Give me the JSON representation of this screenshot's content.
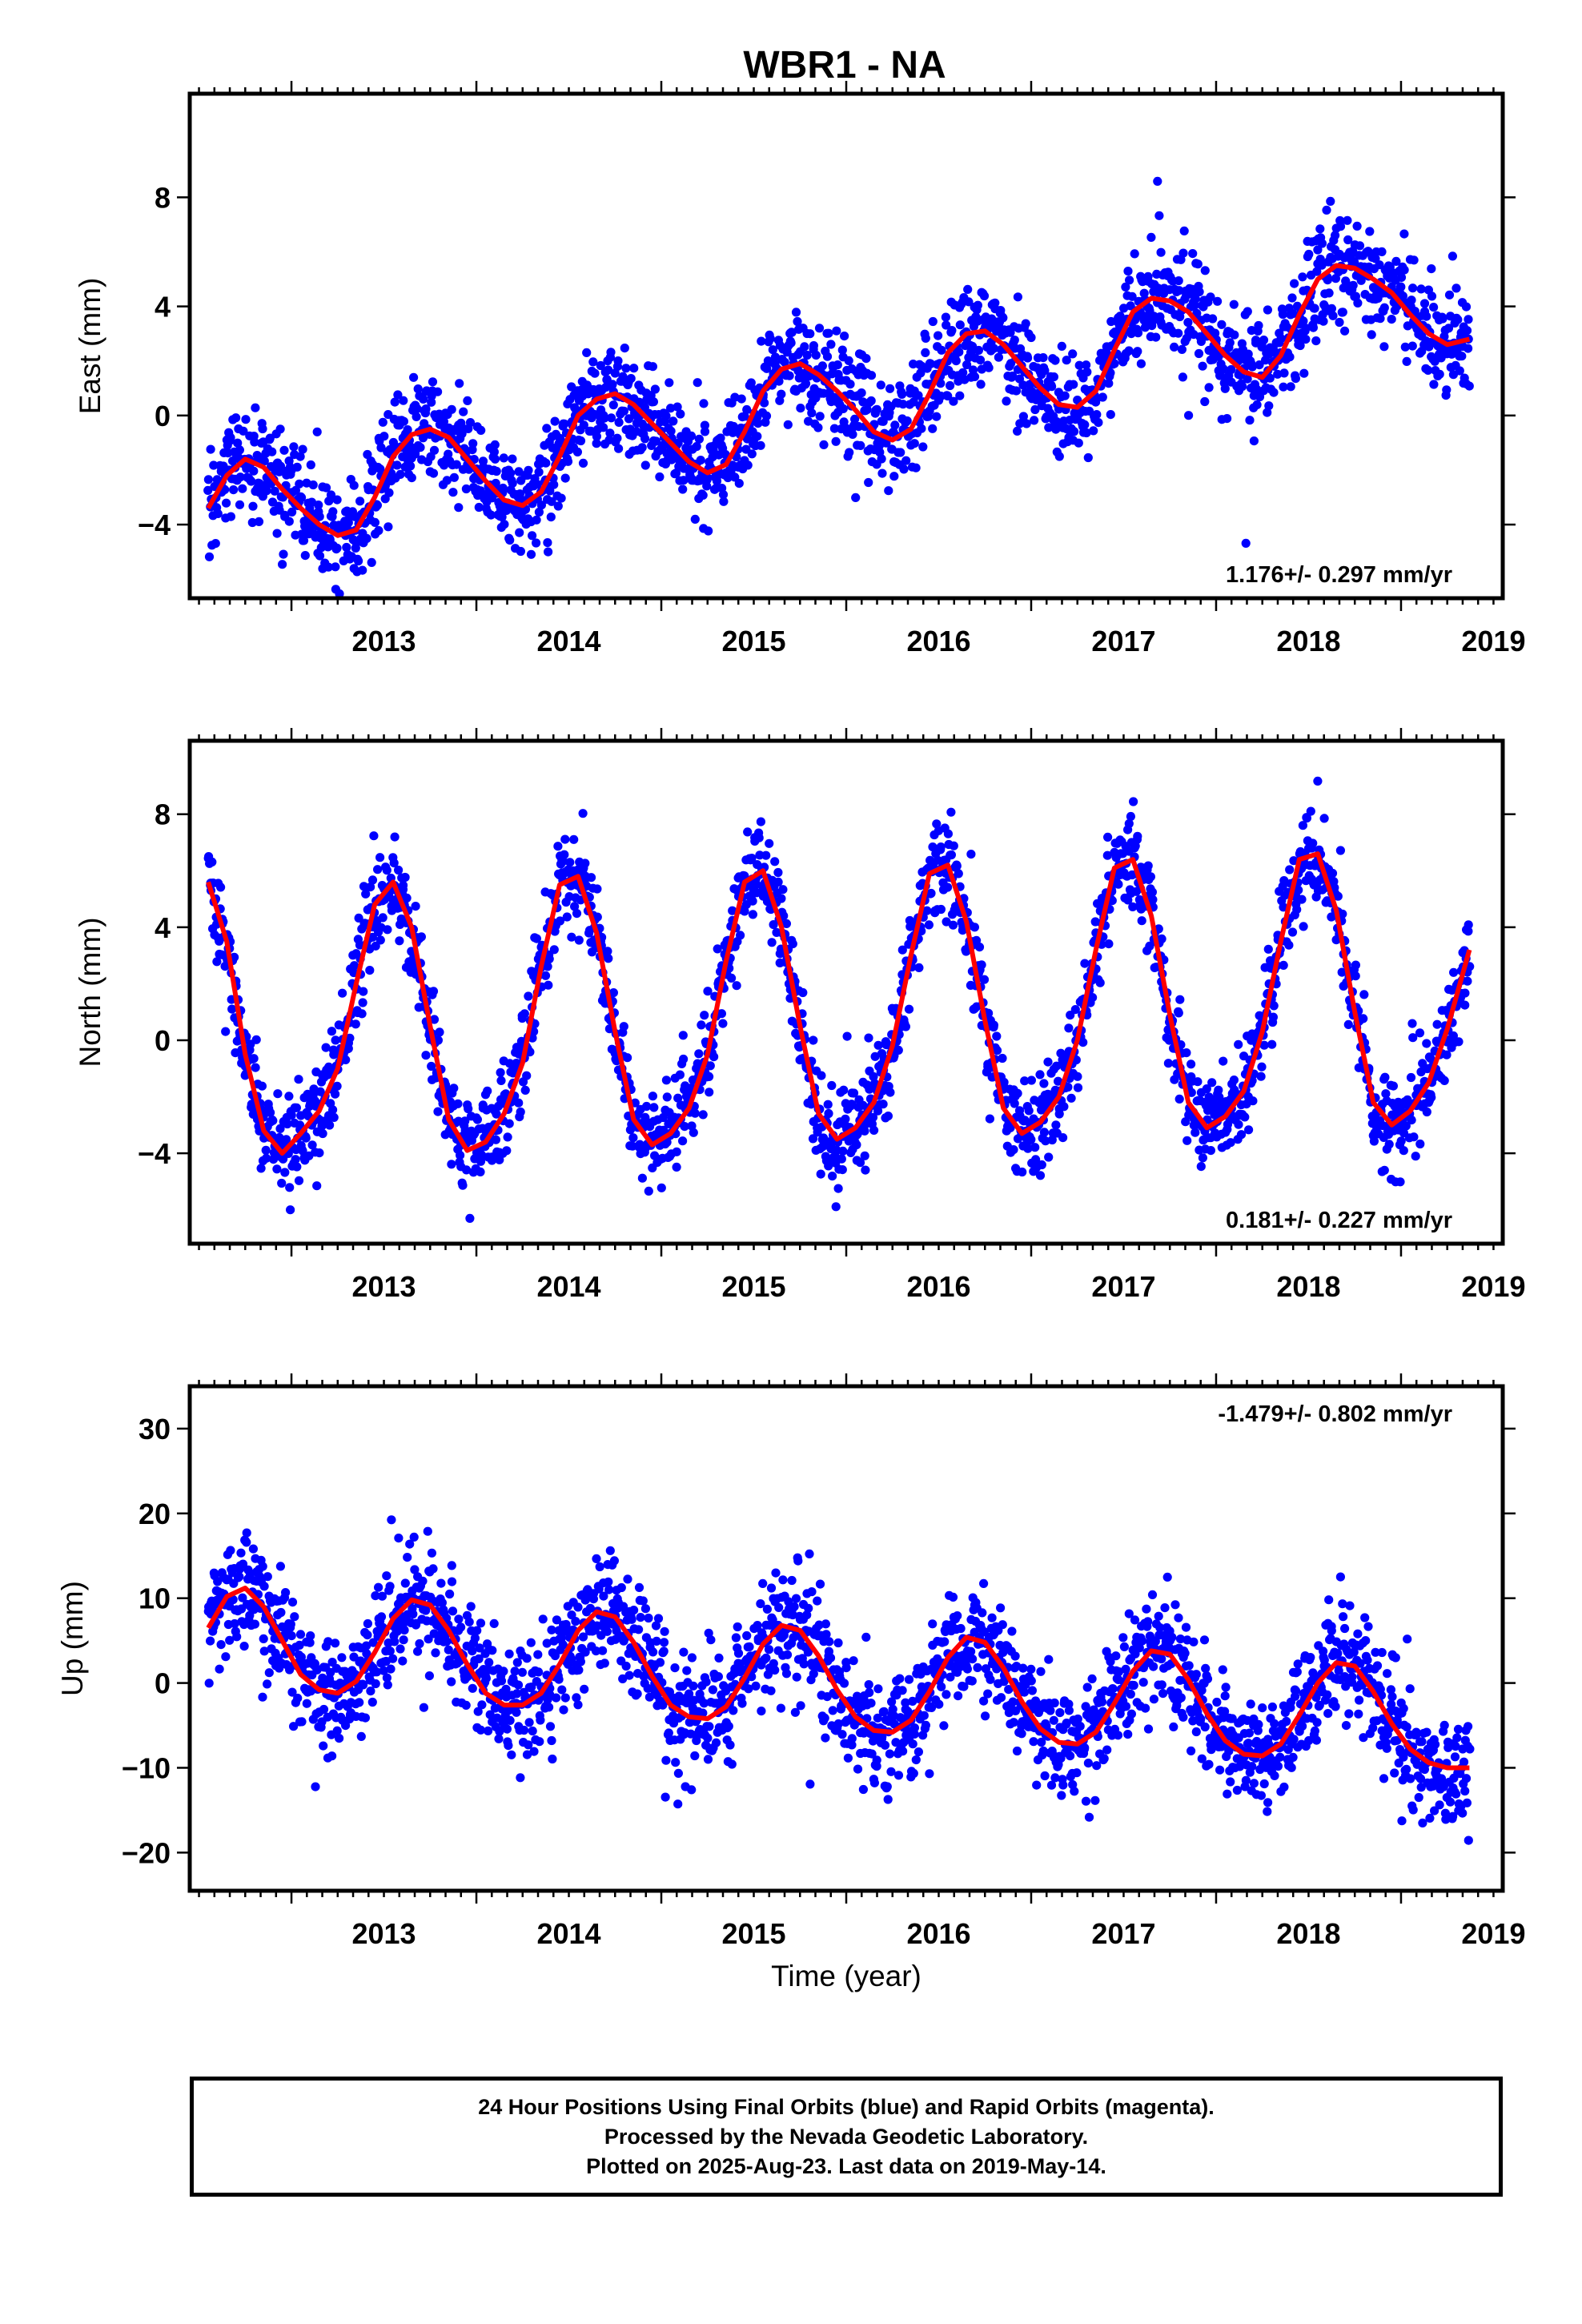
{
  "figure": {
    "title": "WBR1 - NA",
    "xlabel": "Time (year)"
  },
  "colors": {
    "points": "#0000ff",
    "fit": "#ff0000",
    "axes": "#000000"
  },
  "footer": {
    "line1": "24 Hour Positions Using Final Orbits (blue) and Rapid Orbits (magenta).",
    "line2": "Processed by the Nevada Geodetic Laboratory.",
    "line3": "Plotted on 2025-Aug-23. Last data on 2019-May-14."
  },
  "chart_data": [
    {
      "type": "scatter",
      "name": "east-panel",
      "ylabel": "East (mm)",
      "rate_label": "1.176+/- 0.297 mm/yr",
      "rate_position": "bottom-right",
      "xlim": [
        2012.45,
        2019.55
      ],
      "ylim": [
        -6.7,
        11.8
      ],
      "yticks": [
        -4,
        0,
        4,
        8
      ],
      "ytick_labels": [
        "−4",
        "0",
        "4",
        "8"
      ],
      "xticks": [
        2013,
        2014,
        2015,
        2016,
        2017,
        2018,
        2019
      ],
      "xtick_labels": [
        "2013",
        "2014",
        "2015",
        "2016",
        "2017",
        "2018",
        "2019"
      ],
      "data_range": [
        2012.55,
        2019.37
      ],
      "series": [
        {
          "name": "fit",
          "kind": "line",
          "x": [
            2012.55,
            2012.65,
            2012.75,
            2012.85,
            2012.95,
            2013.05,
            2013.15,
            2013.25,
            2013.35,
            2013.45,
            2013.55,
            2013.65,
            2013.75,
            2013.85,
            2013.95,
            2014.05,
            2014.15,
            2014.25,
            2014.35,
            2014.45,
            2014.55,
            2014.65,
            2014.75,
            2014.85,
            2014.95,
            2015.05,
            2015.15,
            2015.25,
            2015.35,
            2015.45,
            2015.55,
            2015.65,
            2015.75,
            2015.85,
            2015.95,
            2016.05,
            2016.15,
            2016.25,
            2016.35,
            2016.45,
            2016.55,
            2016.65,
            2016.75,
            2016.85,
            2016.95,
            2017.05,
            2017.15,
            2017.25,
            2017.35,
            2017.45,
            2017.55,
            2017.65,
            2017.75,
            2017.85,
            2017.95,
            2018.05,
            2018.15,
            2018.25,
            2018.35,
            2018.45,
            2018.55,
            2018.65,
            2018.75,
            2018.85,
            2018.95,
            2019.05,
            2019.15,
            2019.25,
            2019.37
          ],
          "y": [
            -3.4,
            -2.2,
            -1.6,
            -1.9,
            -2.7,
            -3.4,
            -4.0,
            -4.4,
            -4.2,
            -3.0,
            -1.5,
            -0.7,
            -0.5,
            -0.8,
            -1.6,
            -2.4,
            -3.1,
            -3.3,
            -2.8,
            -1.5,
            0.0,
            0.6,
            0.8,
            0.4,
            -0.3,
            -1.0,
            -1.7,
            -2.1,
            -1.8,
            -0.6,
            0.9,
            1.7,
            1.9,
            1.5,
            0.9,
            0.2,
            -0.6,
            -0.9,
            -0.5,
            0.8,
            2.3,
            3.0,
            3.1,
            2.6,
            1.8,
            1.0,
            0.4,
            0.3,
            0.9,
            2.4,
            3.8,
            4.3,
            4.2,
            3.8,
            3.0,
            2.2,
            1.6,
            1.4,
            2.2,
            3.7,
            5.0,
            5.5,
            5.4,
            5.0,
            4.5,
            3.7,
            3.0,
            2.6,
            2.8
          ]
        },
        {
          "name": "positions",
          "kind": "scatter",
          "points_model": "fit + station scatter",
          "std_mm": 0.95,
          "count": 2100
        }
      ]
    },
    {
      "type": "scatter",
      "name": "north-panel",
      "ylabel": "North (mm)",
      "rate_label": "0.181+/- 0.227 mm/yr",
      "rate_position": "bottom-right",
      "xlim": [
        2012.45,
        2019.55
      ],
      "ylim": [
        -7.2,
        10.6
      ],
      "yticks": [
        -4,
        0,
        4,
        8
      ],
      "ytick_labels": [
        "−4",
        "0",
        "4",
        "8"
      ],
      "xticks": [
        2013,
        2014,
        2015,
        2016,
        2017,
        2018,
        2019
      ],
      "xtick_labels": [
        "2013",
        "2014",
        "2015",
        "2016",
        "2017",
        "2018",
        "2019"
      ],
      "data_range": [
        2012.55,
        2019.37
      ],
      "series": [
        {
          "name": "fit",
          "kind": "line",
          "x": [
            2012.55,
            2012.65,
            2012.75,
            2012.85,
            2012.95,
            2013.05,
            2013.15,
            2013.25,
            2013.35,
            2013.45,
            2013.55,
            2013.65,
            2013.75,
            2013.85,
            2013.95,
            2014.05,
            2014.15,
            2014.25,
            2014.35,
            2014.45,
            2014.55,
            2014.65,
            2014.75,
            2014.85,
            2014.95,
            2015.05,
            2015.15,
            2015.25,
            2015.35,
            2015.45,
            2015.55,
            2015.65,
            2015.75,
            2015.85,
            2015.95,
            2016.05,
            2016.15,
            2016.25,
            2016.35,
            2016.45,
            2016.55,
            2016.65,
            2016.75,
            2016.85,
            2016.95,
            2017.05,
            2017.15,
            2017.25,
            2017.35,
            2017.45,
            2017.55,
            2017.65,
            2017.75,
            2017.85,
            2017.95,
            2018.05,
            2018.15,
            2018.25,
            2018.35,
            2018.45,
            2018.55,
            2018.65,
            2018.75,
            2018.85,
            2018.95,
            2019.05,
            2019.15,
            2019.25,
            2019.37
          ],
          "y": [
            5.6,
            3.5,
            -0.5,
            -3.2,
            -4.0,
            -3.3,
            -2.5,
            -1.0,
            2.0,
            4.8,
            5.6,
            4.0,
            0.5,
            -2.8,
            -3.9,
            -3.6,
            -2.6,
            -0.8,
            2.6,
            5.5,
            5.8,
            3.8,
            0.3,
            -2.8,
            -3.7,
            -3.3,
            -2.4,
            -0.5,
            2.8,
            5.6,
            6.0,
            4.0,
            0.5,
            -2.6,
            -3.5,
            -3.1,
            -2.2,
            -0.2,
            3.0,
            5.9,
            6.2,
            4.2,
            0.7,
            -2.4,
            -3.3,
            -2.9,
            -2.0,
            0.0,
            3.2,
            6.1,
            6.4,
            4.4,
            0.9,
            -2.2,
            -3.1,
            -2.7,
            -1.8,
            0.3,
            3.5,
            6.4,
            6.6,
            4.6,
            1.0,
            -2.2,
            -3.0,
            -2.5,
            -1.5,
            0.4,
            3.2
          ]
        },
        {
          "name": "positions",
          "kind": "scatter",
          "points_model": "fit + station scatter",
          "std_mm": 0.85,
          "count": 2100
        }
      ]
    },
    {
      "type": "scatter",
      "name": "up-panel",
      "ylabel": "Up (mm)",
      "rate_label": "-1.479+/- 0.802 mm/yr",
      "rate_position": "top-right",
      "xlabel": "Time (year)",
      "xlim": [
        2012.45,
        2019.55
      ],
      "ylim": [
        -24.5,
        35
      ],
      "yticks": [
        -20,
        -10,
        0,
        10,
        20,
        30
      ],
      "ytick_labels": [
        "−20",
        "−10",
        "0",
        "10",
        "20",
        "30"
      ],
      "xticks": [
        2013,
        2014,
        2015,
        2016,
        2017,
        2018,
        2019
      ],
      "xtick_labels": [
        "2013",
        "2014",
        "2015",
        "2016",
        "2017",
        "2018",
        "2019"
      ],
      "data_range": [
        2012.55,
        2019.37
      ],
      "series": [
        {
          "name": "fit",
          "kind": "line",
          "x": [
            2012.55,
            2012.65,
            2012.75,
            2012.85,
            2012.95,
            2013.05,
            2013.15,
            2013.25,
            2013.35,
            2013.45,
            2013.55,
            2013.65,
            2013.75,
            2013.85,
            2013.95,
            2014.05,
            2014.15,
            2014.25,
            2014.35,
            2014.45,
            2014.55,
            2014.65,
            2014.75,
            2014.85,
            2014.95,
            2015.05,
            2015.15,
            2015.25,
            2015.35,
            2015.45,
            2015.55,
            2015.65,
            2015.75,
            2015.85,
            2015.95,
            2016.05,
            2016.15,
            2016.25,
            2016.35,
            2016.45,
            2016.55,
            2016.65,
            2016.75,
            2016.85,
            2016.95,
            2017.05,
            2017.15,
            2017.25,
            2017.35,
            2017.45,
            2017.55,
            2017.65,
            2017.75,
            2017.85,
            2017.95,
            2018.05,
            2018.15,
            2018.25,
            2018.35,
            2018.45,
            2018.55,
            2018.65,
            2018.75,
            2018.85,
            2018.95,
            2019.05,
            2019.15,
            2019.25,
            2019.37
          ],
          "y": [
            6.5,
            10.2,
            11.2,
            9.0,
            5.0,
            1.0,
            -0.8,
            -1.2,
            0.2,
            3.6,
            7.6,
            9.8,
            9.2,
            6.2,
            2.2,
            -1.2,
            -2.6,
            -2.6,
            -1.2,
            2.2,
            6.2,
            8.4,
            7.8,
            4.8,
            0.8,
            -2.6,
            -4.0,
            -4.2,
            -2.8,
            0.6,
            4.6,
            6.8,
            6.2,
            3.2,
            -0.8,
            -4.0,
            -5.6,
            -5.8,
            -4.4,
            -1.0,
            3.0,
            5.4,
            4.8,
            1.8,
            -2.2,
            -5.4,
            -7.0,
            -7.2,
            -5.8,
            -2.4,
            1.4,
            3.8,
            3.4,
            0.4,
            -3.6,
            -6.8,
            -8.4,
            -8.6,
            -7.2,
            -3.8,
            0.0,
            2.4,
            2.0,
            -1.0,
            -4.8,
            -7.8,
            -9.4,
            -10.0,
            -10.0
          ]
        },
        {
          "name": "positions",
          "kind": "scatter",
          "points_model": "fit + station scatter",
          "std_mm": 3.4,
          "count": 2100
        }
      ]
    }
  ]
}
